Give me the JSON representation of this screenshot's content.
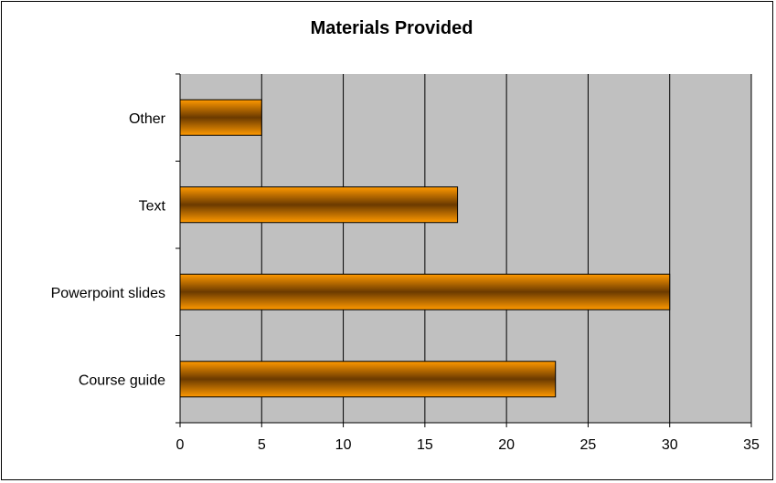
{
  "chart_data": {
    "type": "bar",
    "orientation": "horizontal",
    "title": "Materials Provided",
    "xlabel": "",
    "ylabel": "",
    "categories": [
      "Course guide",
      "Powerpoint slides",
      "Text",
      "Other"
    ],
    "values": [
      23,
      30,
      17,
      5
    ],
    "xlim": [
      0,
      35
    ],
    "xticks": [
      0,
      5,
      10,
      15,
      20,
      25,
      30,
      35
    ],
    "grid": "vertical",
    "legend": "none",
    "colors": {
      "plot_background": "#c0c0c0",
      "bar_fill_edge": "#ff9900",
      "bar_fill_center": "#6b3a00",
      "bar_stroke": "#000000",
      "grid": "#000000"
    }
  }
}
